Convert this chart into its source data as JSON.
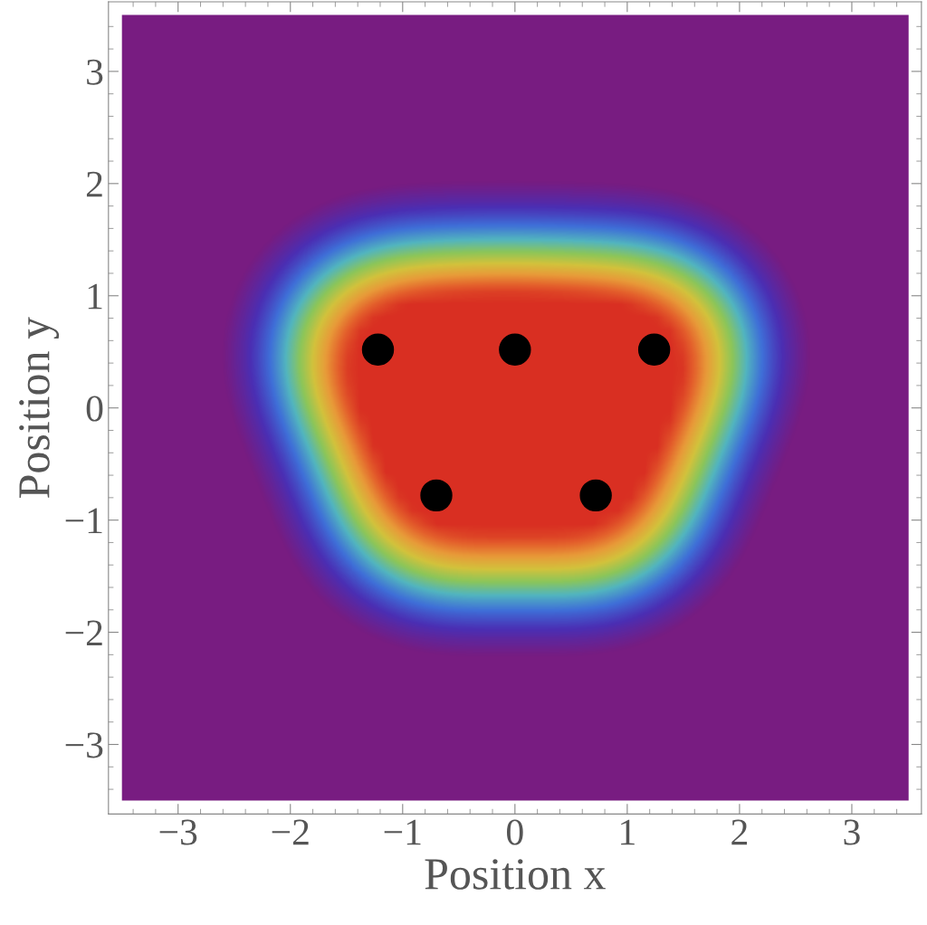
{
  "chart_data": {
    "type": "scatter",
    "xlabel": "Position x",
    "ylabel": "Position y",
    "x": [
      -1.22,
      0,
      1.24,
      -0.7,
      0.72
    ],
    "values": [
      0.52,
      0.52,
      0.52,
      -0.78,
      -0.78
    ],
    "color": "#000000",
    "marker": "circle",
    "xlim": [
      -3.62,
      3.62
    ],
    "ylim": [
      -3.62,
      3.62
    ],
    "xticks": [
      {
        "value": -3,
        "label": "−3"
      },
      {
        "value": -2,
        "label": "−2"
      },
      {
        "value": -1,
        "label": "−1"
      },
      0,
      1,
      2,
      3
    ],
    "yticks": [
      {
        "value": -3,
        "label": "−3"
      },
      {
        "value": -2,
        "label": "−2"
      },
      {
        "value": -1,
        "label": "−1"
      },
      0,
      1,
      2,
      3
    ]
  }
}
